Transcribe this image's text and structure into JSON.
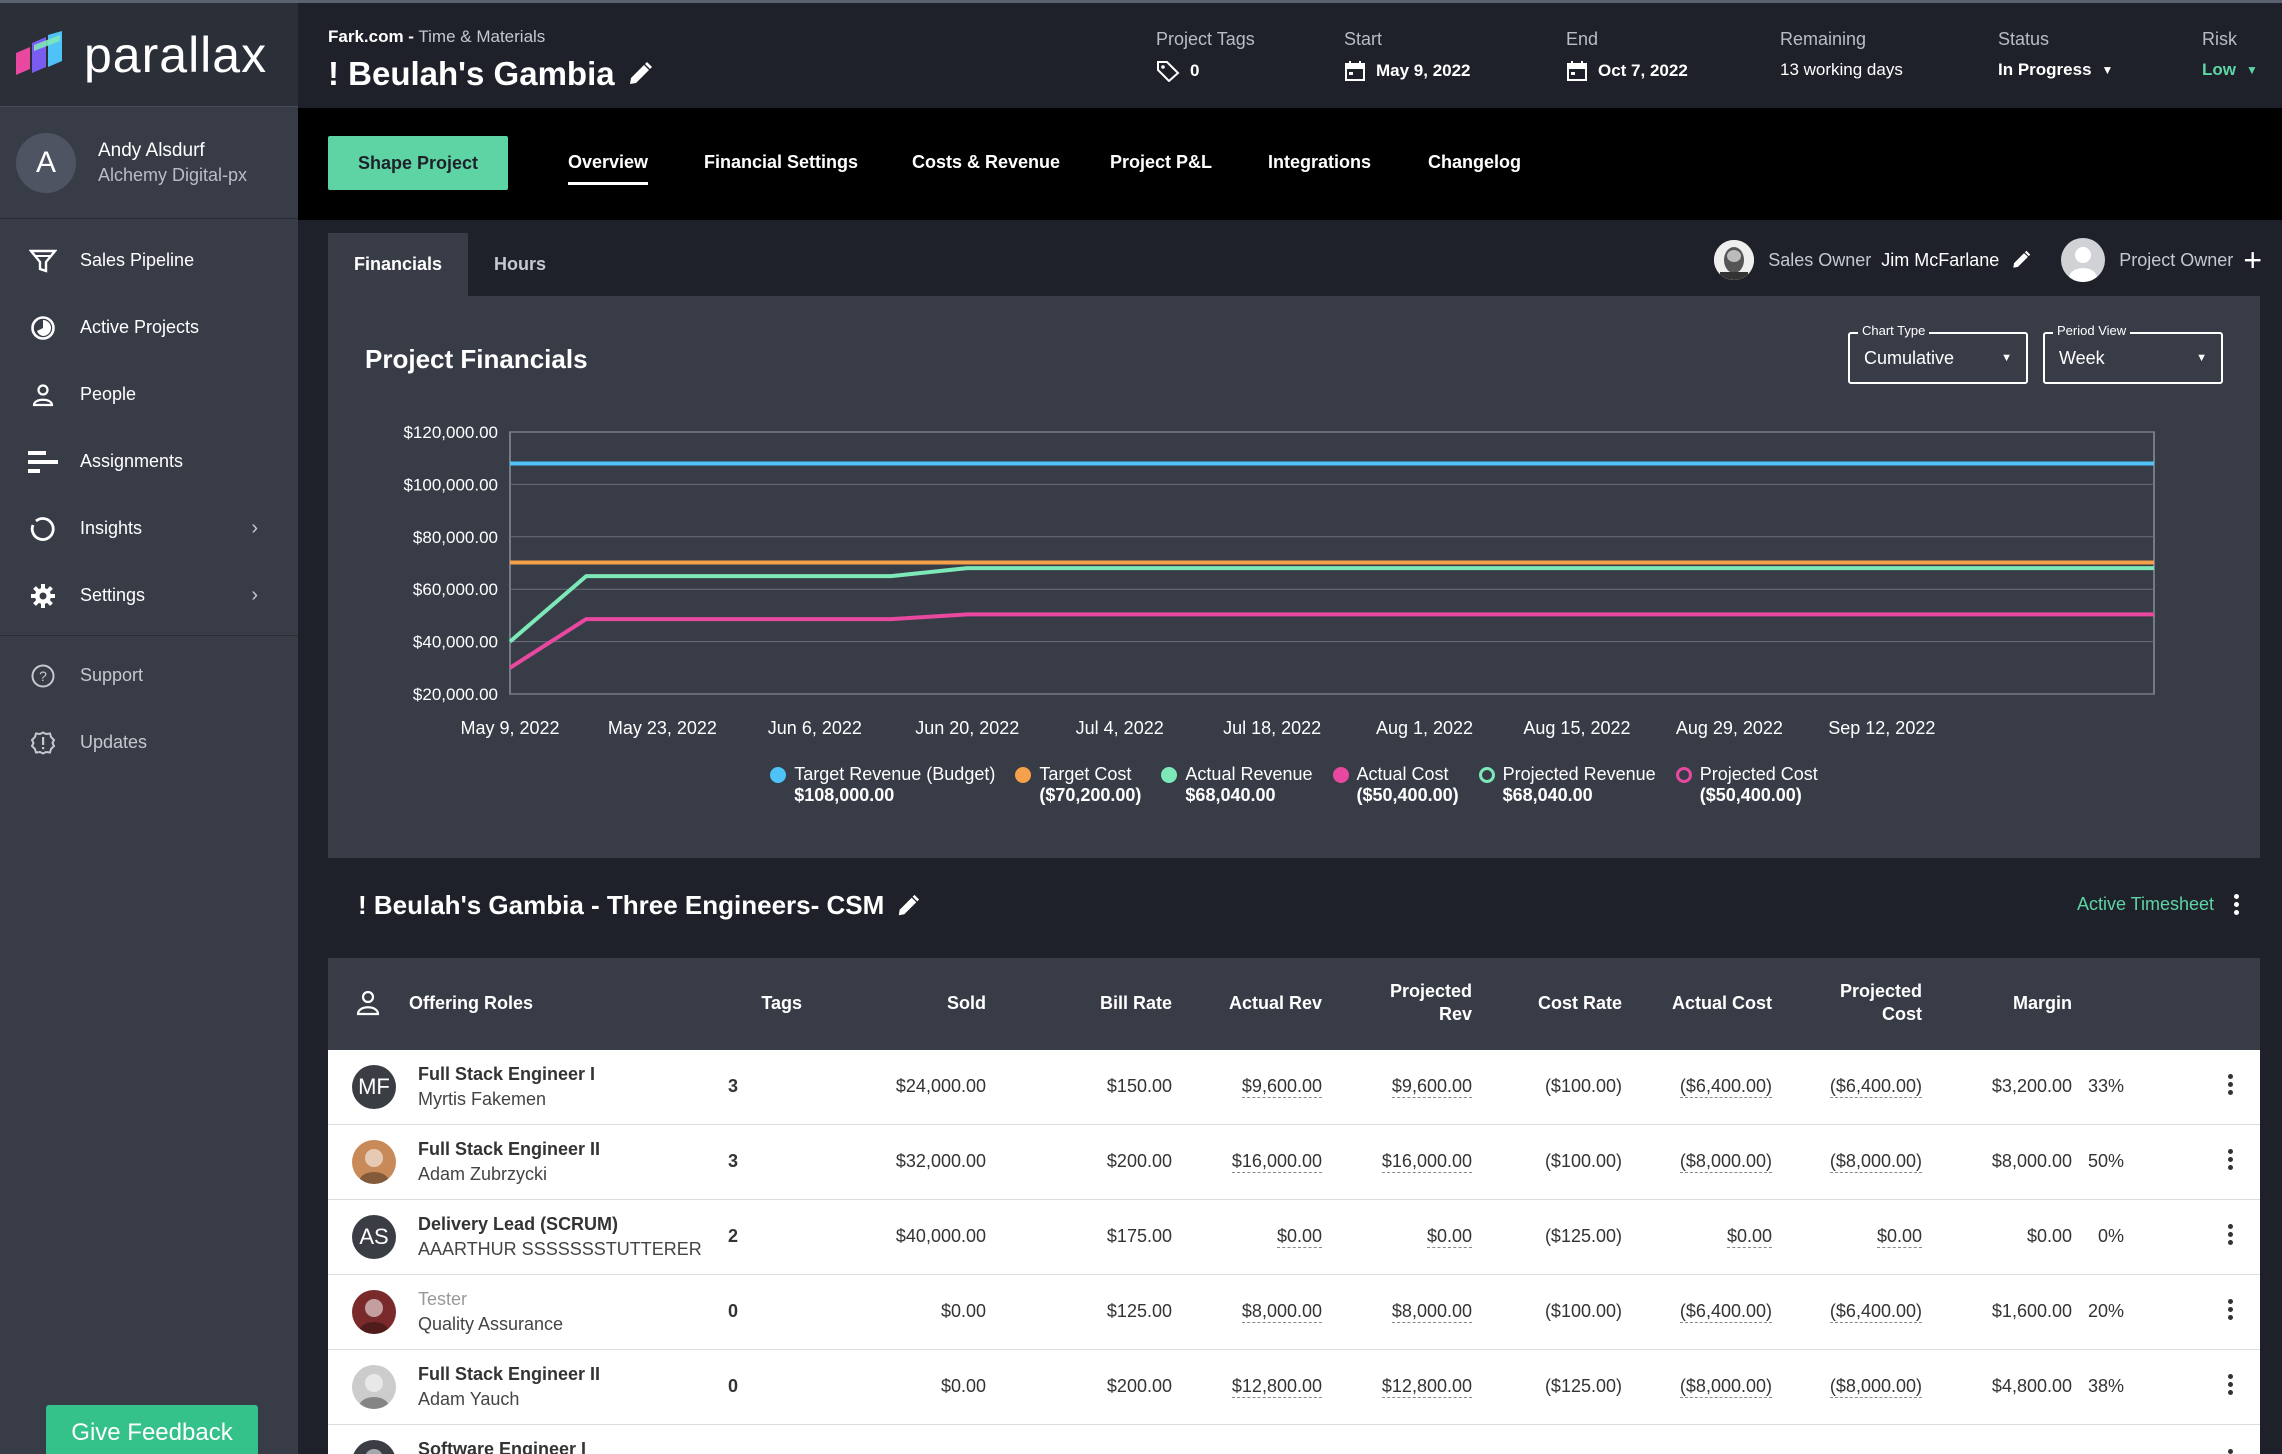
{
  "brand": {
    "name": "parallax"
  },
  "user": {
    "initial": "A",
    "name": "Andy Alsdurf",
    "org": "Alchemy Digital-px"
  },
  "nav": [
    {
      "label": "Sales Pipeline",
      "icon": "funnel-icon"
    },
    {
      "label": "Active Projects",
      "icon": "pie-icon"
    },
    {
      "label": "People",
      "icon": "person-icon"
    },
    {
      "label": "Assignments",
      "icon": "bars-icon"
    },
    {
      "label": "Insights",
      "icon": "insights-icon"
    },
    {
      "label": "Settings",
      "icon": "gear-icon"
    }
  ],
  "nav_secondary": [
    {
      "label": "Support",
      "icon": "help-icon"
    },
    {
      "label": "Updates",
      "icon": "updates-icon"
    }
  ],
  "feedback_label": "Give Feedback",
  "header": {
    "client": "Fark.com -",
    "billing": "Time & Materials",
    "title": "! Beulah's Gambia",
    "tags_label": "Project Tags",
    "tags_value": "0",
    "start_label": "Start",
    "start_value": "May 9, 2022",
    "end_label": "End",
    "end_value": "Oct 7, 2022",
    "remaining_label": "Remaining",
    "remaining_value": "13 working days",
    "status_label": "Status",
    "status_value": "In Progress",
    "risk_label": "Risk",
    "risk_value": "Low"
  },
  "tabs": {
    "shape_label": "Shape Project",
    "items": [
      "Overview",
      "Financial Settings",
      "Costs & Revenue",
      "Project P&L",
      "Integrations",
      "Changelog"
    ],
    "active": "Overview"
  },
  "subtabs": [
    "Financials",
    "Hours"
  ],
  "owners": {
    "sales_label": "Sales Owner",
    "sales_name": "Jim McFarlane",
    "project_label": "Project Owner"
  },
  "chart_panel": {
    "title": "Project Financials",
    "chart_type_label": "Chart Type",
    "chart_type_value": "Cumulative",
    "period_label": "Period View",
    "period_value": "Week"
  },
  "chart_data": {
    "type": "line",
    "title": "Project Financials",
    "x": [
      "May 9, 2022",
      "May 23, 2022",
      "Jun 6, 2022",
      "Jun 20, 2022",
      "Jul 4, 2022",
      "Jul 18, 2022",
      "Aug 1, 2022",
      "Aug 15, 2022",
      "Aug 29, 2022",
      "Sep 12, 2022"
    ],
    "y_ticks": [
      "$120,000.00",
      "$100,000.00",
      "$80,000.00",
      "$60,000.00",
      "$40,000.00",
      "$20,000.00"
    ],
    "ylim": [
      20000,
      120000
    ],
    "xlim": [
      "May 9, 2022",
      "Oct 7, 2022"
    ],
    "series": [
      {
        "name": "Target Revenue (Budget)",
        "total": "$108,000.00",
        "color": "#4fc3f7",
        "marker": "filled",
        "points": [
          [
            "May 9, 2022",
            108000
          ],
          [
            "Oct 7, 2022",
            108000
          ]
        ]
      },
      {
        "name": "Target Cost",
        "total": "($70,200.00)",
        "color": "#f5a04a",
        "marker": "filled",
        "points": [
          [
            "May 9, 2022",
            70200
          ],
          [
            "Oct 7, 2022",
            70200
          ]
        ]
      },
      {
        "name": "Actual Revenue",
        "total": "$68,040.00",
        "color": "#7de8b8",
        "marker": "filled",
        "points": [
          [
            "May 9, 2022",
            40000
          ],
          [
            "May 16, 2022",
            65000
          ],
          [
            "Jun 13, 2022",
            65000
          ],
          [
            "Jun 20, 2022",
            68040
          ],
          [
            "Oct 7, 2022",
            68040
          ]
        ]
      },
      {
        "name": "Actual Cost",
        "total": "($50,400.00)",
        "color": "#e8489f",
        "marker": "filled",
        "points": [
          [
            "May 9, 2022",
            30000
          ],
          [
            "May 16, 2022",
            48600
          ],
          [
            "Jun 13, 2022",
            48600
          ],
          [
            "Jun 20, 2022",
            50400
          ],
          [
            "Oct 7, 2022",
            50400
          ]
        ]
      },
      {
        "name": "Projected Revenue",
        "total": "$68,040.00",
        "color": "#7de8b8",
        "marker": "hollow"
      },
      {
        "name": "Projected Cost",
        "total": "($50,400.00)",
        "color": "#e8489f",
        "marker": "hollow"
      }
    ],
    "grid": true,
    "legend": "bottom"
  },
  "section": {
    "title": "! Beulah's Gambia - Three Engineers- CSM",
    "active_label": "Active Timesheet"
  },
  "table": {
    "headers": {
      "roles": "Offering Roles",
      "tags": "Tags",
      "sold": "Sold",
      "bill_rate": "Bill Rate",
      "actual_rev": "Actual Rev",
      "projected_rev_1": "Projected",
      "projected_rev_2": "Rev",
      "cost_rate": "Cost Rate",
      "actual_cost": "Actual Cost",
      "projected_cost_1": "Projected",
      "projected_cost_2": "Cost",
      "margin": "Margin"
    },
    "rows": [
      {
        "initials": "MF",
        "role": "Full Stack Engineer I",
        "name": "Myrtis Fakemen",
        "tags": "3",
        "sold": "$24,000.00",
        "bill_rate": "$150.00",
        "actual_rev": "$9,600.00",
        "projected_rev": "$9,600.00",
        "cost_rate": "($100.00)",
        "actual_cost": "($6,400.00)",
        "projected_cost": "($6,400.00)",
        "margin": "$3,200.00",
        "pct": "33%"
      },
      {
        "initials": "",
        "role": "Full Stack Engineer II",
        "name": "Adam Zubrzycki",
        "tags": "3",
        "sold": "$32,000.00",
        "bill_rate": "$200.00",
        "actual_rev": "$16,000.00",
        "projected_rev": "$16,000.00",
        "cost_rate": "($100.00)",
        "actual_cost": "($8,000.00)",
        "projected_cost": "($8,000.00)",
        "margin": "$8,000.00",
        "pct": "50%"
      },
      {
        "initials": "AS",
        "role": "Delivery Lead (SCRUM)",
        "name": "AAARTHUR SSSSSSSTUTTERER",
        "tags": "2",
        "sold": "$40,000.00",
        "bill_rate": "$175.00",
        "actual_rev": "$0.00",
        "projected_rev": "$0.00",
        "cost_rate": "($125.00)",
        "actual_cost": "$0.00",
        "projected_cost": "$0.00",
        "margin": "$0.00",
        "pct": "0%"
      },
      {
        "initials": "",
        "role": "Tester",
        "name": "Quality Assurance",
        "tags": "0",
        "sold": "$0.00",
        "bill_rate": "$125.00",
        "actual_rev": "$8,000.00",
        "projected_rev": "$8,000.00",
        "cost_rate": "($100.00)",
        "actual_cost": "($6,400.00)",
        "projected_cost": "($6,400.00)",
        "margin": "$1,600.00",
        "pct": "20%"
      },
      {
        "initials": "",
        "role": "Full Stack Engineer II",
        "name": "Adam Yauch",
        "tags": "0",
        "sold": "$0.00",
        "bill_rate": "$200.00",
        "actual_rev": "$12,800.00",
        "projected_rev": "$12,800.00",
        "cost_rate": "($125.00)",
        "actual_cost": "($8,000.00)",
        "projected_cost": "($8,000.00)",
        "margin": "$4,800.00",
        "pct": "38%"
      },
      {
        "initials": "",
        "role": "Software Engineer I",
        "name": "",
        "tags": "",
        "sold": "",
        "bill_rate": "",
        "actual_rev": "",
        "projected_rev": "",
        "cost_rate": "",
        "actual_cost": "",
        "projected_cost": "",
        "margin": "",
        "pct": ""
      }
    ]
  }
}
